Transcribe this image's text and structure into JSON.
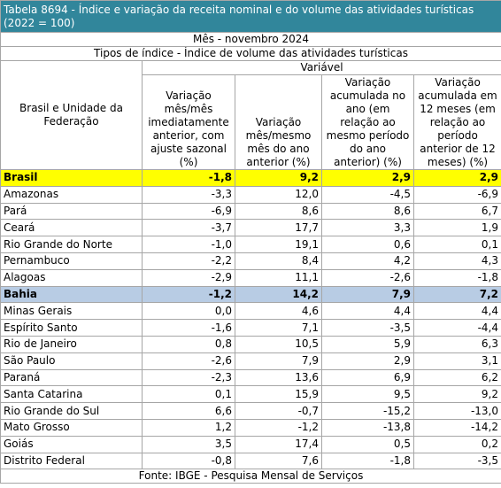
{
  "title": "Tabela 8694 - Índice e variação da receita nominal e do volume das atividades turísticas (2022 = 100)",
  "period": "Mês - novembro 2024",
  "index_type": "Tipos de índice - Índice de volume das atividades turísticas",
  "variable_label": "Variável",
  "table": {
    "headers": [
      "Brasil e Unidade da Federação",
      "Variação mês/mês imediatamente anterior, com ajuste sazonal (%)",
      "Variação mês/mesmo mês do ano anterior (%)",
      "Variação acumulada no ano (em relação ao mesmo período do ano anterior) (%)",
      "Variação acumulada em 12 meses (em relação ao período anterior de 12 meses) (%)"
    ],
    "rows": [
      [
        "Brasil",
        "-1,8",
        "9,2",
        "2,9",
        "2,9"
      ],
      [
        "Amazonas",
        "-3,3",
        "12,0",
        "-4,5",
        "-6,9"
      ],
      [
        "Pará",
        "-6,9",
        "8,6",
        "8,6",
        "6,7"
      ],
      [
        "Ceará",
        "-3,7",
        "17,7",
        "3,3",
        "1,9"
      ],
      [
        "Rio Grande do Norte",
        "-1,0",
        "19,1",
        "0,6",
        "0,1"
      ],
      [
        "Pernambuco",
        "-2,2",
        "8,4",
        "4,2",
        "4,3"
      ],
      [
        "Alagoas",
        "-2,9",
        "11,1",
        "-2,6",
        "-1,8"
      ],
      [
        "Bahia",
        "-1,2",
        "14,2",
        "7,9",
        "7,2"
      ],
      [
        "Minas Gerais",
        "0,0",
        "4,6",
        "4,4",
        "4,4"
      ],
      [
        "Espírito Santo",
        "-1,6",
        "7,1",
        "-3,5",
        "-4,4"
      ],
      [
        "Rio de Janeiro",
        "0,8",
        "10,5",
        "5,9",
        "6,3"
      ],
      [
        "São Paulo",
        "-2,6",
        "7,9",
        "2,9",
        "3,1"
      ],
      [
        "Paraná",
        "-2,3",
        "13,6",
        "6,9",
        "6,2"
      ],
      [
        "Santa Catarina",
        "0,1",
        "15,9",
        "9,5",
        "9,2"
      ],
      [
        "Rio Grande do Sul",
        "6,6",
        "-0,7",
        "-15,2",
        "-13,0"
      ],
      [
        "Mato Grosso",
        "1,2",
        "-1,2",
        "-13,8",
        "-14,2"
      ],
      [
        "Goiás",
        "3,5",
        "17,4",
        "0,5",
        "0,2"
      ],
      [
        "Distrito Federal",
        "-0,8",
        "7,6",
        "-1,8",
        "-3,5"
      ]
    ]
  },
  "footer": "Fonte: IBGE - Pesquisa Mensal de Serviços"
}
